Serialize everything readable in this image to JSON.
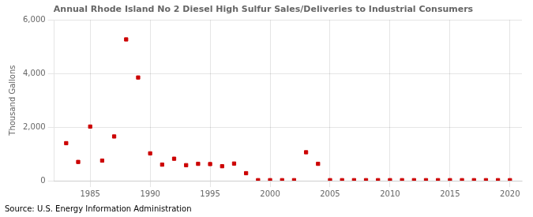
{
  "chart_data": {
    "type": "scatter",
    "title": "Annual Rhode Island No 2 Diesel High Sulfur Sales/Deliveries to Industrial Consumers",
    "ylabel": "Thousand Gallons",
    "source": "Source: U.S. Energy Information Administration",
    "x": [
      1983,
      1984,
      1985,
      1986,
      1987,
      1988,
      1989,
      1990,
      1991,
      1992,
      1993,
      1994,
      1995,
      1996,
      1997,
      1998,
      1999,
      2000,
      2001,
      2002,
      2003,
      2004,
      2005,
      2006,
      2007,
      2008,
      2009,
      2010,
      2011,
      2012,
      2013,
      2014,
      2015,
      2016,
      2017,
      2018,
      2019,
      2020
    ],
    "values": [
      1400,
      700,
      2020,
      750,
      1650,
      5270,
      3850,
      1020,
      600,
      820,
      580,
      630,
      620,
      540,
      640,
      280,
      20,
      20,
      20,
      20,
      1060,
      630,
      20,
      20,
      20,
      20,
      20,
      20,
      20,
      20,
      20,
      20,
      20,
      20,
      20,
      20,
      20,
      20
    ],
    "color": "#cc0000",
    "marker": "square",
    "xlim": [
      1982,
      2021
    ],
    "xticks": [
      1985,
      1990,
      1995,
      2000,
      2005,
      2010,
      2015,
      2020
    ],
    "ylim": [
      0,
      6000
    ],
    "yticks": [
      0,
      {
        "value": 2000,
        "label": "2,000"
      },
      {
        "value": 4000,
        "label": "4,000"
      },
      {
        "value": 6000,
        "label": "6,000"
      }
    ],
    "grid": true
  }
}
